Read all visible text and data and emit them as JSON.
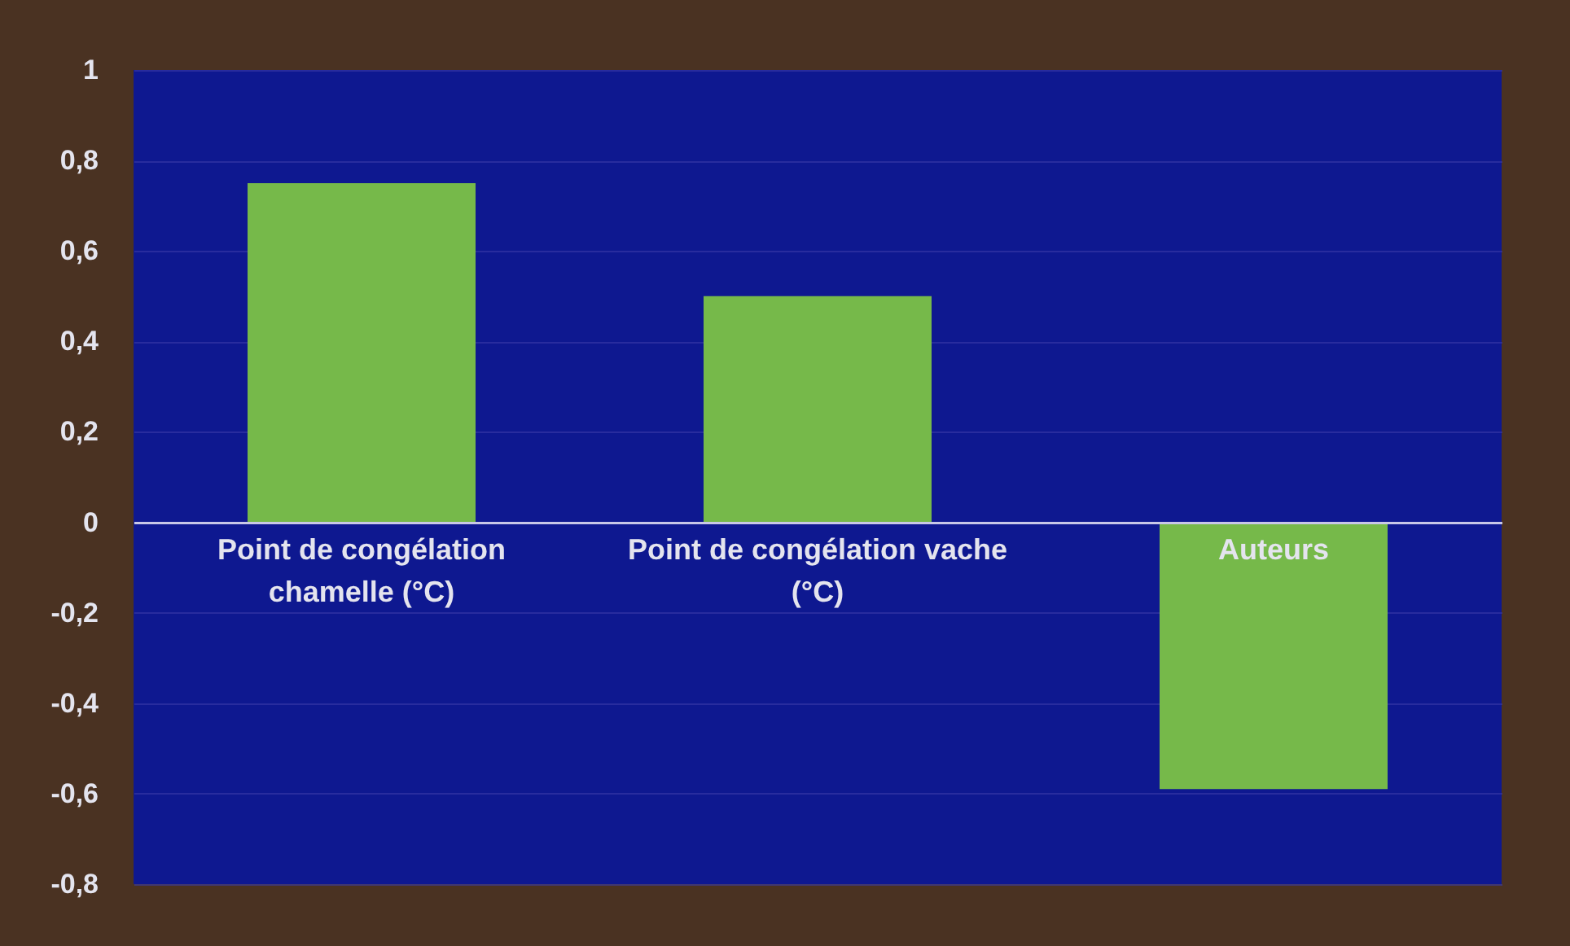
{
  "chart_data": {
    "type": "bar",
    "categories": [
      "Point de congélation chamelle (°C)",
      "Point de congélation vache (°C)",
      "Auteurs"
    ],
    "values": [
      0.75,
      0.5,
      -0.59
    ],
    "color": "#76b94a",
    "ylim": [
      -0.8,
      1
    ],
    "yticks": [
      {
        "value": -0.8,
        "label": "-0,8"
      },
      {
        "value": -0.6,
        "label": "-0,6"
      },
      {
        "value": -0.4,
        "label": "-0,4"
      },
      {
        "value": -0.2,
        "label": "-0,2"
      },
      {
        "value": 0,
        "label": "0"
      },
      {
        "value": 0.2,
        "label": "0,2"
      },
      {
        "value": 0.4,
        "label": "0,4"
      },
      {
        "value": 0.6,
        "label": "0,6"
      },
      {
        "value": 0.8,
        "label": "0,8"
      },
      {
        "value": 1,
        "label": "1"
      }
    ],
    "grid": "y"
  }
}
